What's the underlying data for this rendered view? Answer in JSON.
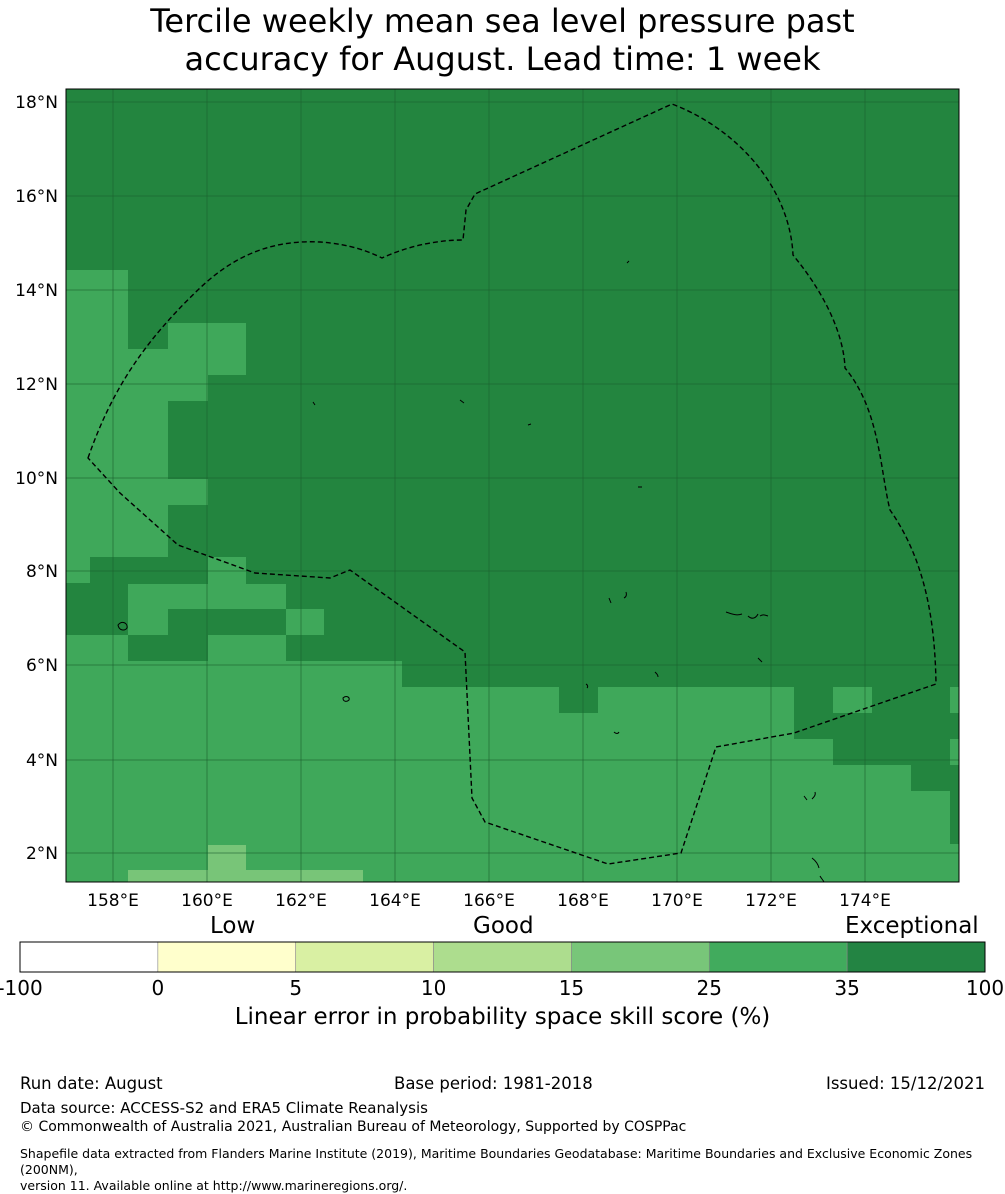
{
  "title_line1": "Tercile weekly mean sea level pressure past",
  "title_line2": "accuracy for August. Lead time: 1 week",
  "map": {
    "lat_ticks": [
      "18°N",
      "16°N",
      "14°N",
      "12°N",
      "10°N",
      "8°N",
      "6°N",
      "4°N",
      "2°N"
    ],
    "lon_ticks": [
      "158°E",
      "160°E",
      "162°E",
      "164°E",
      "166°E",
      "168°E",
      "170°E",
      "172°E",
      "174°E"
    ],
    "eez_boundary_style": "dashed black",
    "cell_colors": {
      "dark": "#23853f",
      "mid": "#3fa85a",
      "light": "#78c578"
    }
  },
  "legend": {
    "category_labels": [
      "Low",
      "Good",
      "Exceptional"
    ],
    "tick_labels": [
      "-100",
      "0",
      "5",
      "10",
      "15",
      "25",
      "35",
      "100"
    ],
    "colors": [
      "#ffffff",
      "#ffffcc",
      "#d9f0a3",
      "#addd8e",
      "#78c679",
      "#41ab5d",
      "#238443"
    ],
    "title": "Linear error in probability space skill score (%)"
  },
  "footer": {
    "run_date": "Run date: August",
    "base_period": "Base period: 1981-2018",
    "issued": "Issued: 15/12/2021",
    "data_source": "Data source: ACCESS-S2 and ERA5 Climate Reanalysis",
    "copyright": "© Commonwealth of Australia 2021, Australian Bureau of Meteorology, Supported by COSPPac",
    "shapefile_line1": "Shapefile data extracted from Flanders Marine Institute (2019), Maritime Boundaries Geodatabase: Maritime Boundaries and Exclusive Economic Zones (200NM),",
    "shapefile_line2": "version 11. Available online at http://www.marineregions.org/."
  }
}
